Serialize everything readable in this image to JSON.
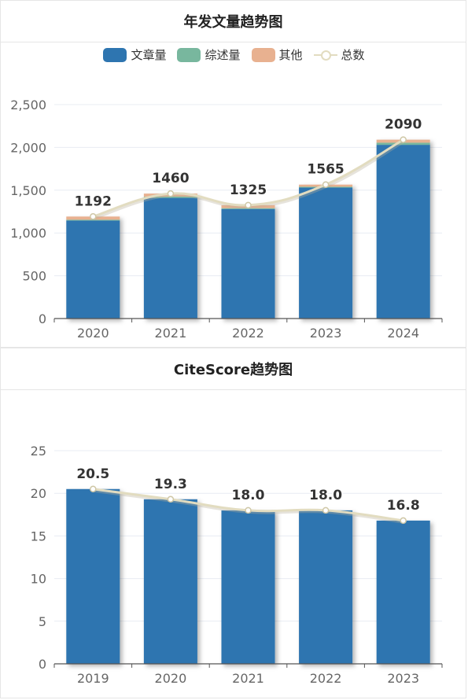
{
  "chart_data": [
    {
      "type": "bar",
      "title": "年发文量趋势图",
      "stacked": true,
      "categories": [
        "2020",
        "2021",
        "2022",
        "2023",
        "2024"
      ],
      "series": [
        {
          "name": "文章量",
          "color": "#2e75b0",
          "values": [
            1145,
            1410,
            1280,
            1530,
            2030
          ]
        },
        {
          "name": "综述量",
          "color": "#78b79e",
          "values": [
            10,
            15,
            10,
            10,
            25
          ]
        },
        {
          "name": "其他",
          "color": "#e8b190",
          "values": [
            37,
            35,
            35,
            25,
            35
          ]
        }
      ],
      "line": {
        "name": "总数",
        "color": "#e2dcc0",
        "values": [
          1192,
          1460,
          1325,
          1565,
          2090
        ]
      },
      "data_labels": [
        "1192",
        "1460",
        "1325",
        "1565",
        "2090"
      ],
      "ylim": [
        0,
        2500
      ],
      "yticks": [
        0,
        500,
        1000,
        1500,
        2000,
        2500
      ],
      "ytick_labels": [
        "0",
        "500",
        "1,000",
        "1,500",
        "2,000",
        "2,500"
      ],
      "legend": "top-center",
      "grid": true
    },
    {
      "type": "bar",
      "title": "CiteScore趋势图",
      "categories": [
        "2019",
        "2020",
        "2021",
        "2022",
        "2023"
      ],
      "series": [
        {
          "color": "#2e75b0",
          "values": [
            20.5,
            19.3,
            18.0,
            18.0,
            16.8
          ]
        }
      ],
      "line": {
        "color": "#e2dcc0",
        "values": [
          20.5,
          19.3,
          18.0,
          18.0,
          16.8
        ]
      },
      "data_labels": [
        "20.5",
        "19.3",
        "18.0",
        "18.0",
        "16.8"
      ],
      "ylim": [
        0,
        25
      ],
      "yticks": [
        0,
        5,
        10,
        15,
        20,
        25
      ],
      "ytick_labels": [
        "0",
        "5",
        "10",
        "15",
        "20",
        "25"
      ],
      "grid": true
    }
  ],
  "colors": {
    "grid": "#e8ecf3",
    "axis": "#555555",
    "tick_text": "#666666",
    "label_text": "#333333"
  }
}
